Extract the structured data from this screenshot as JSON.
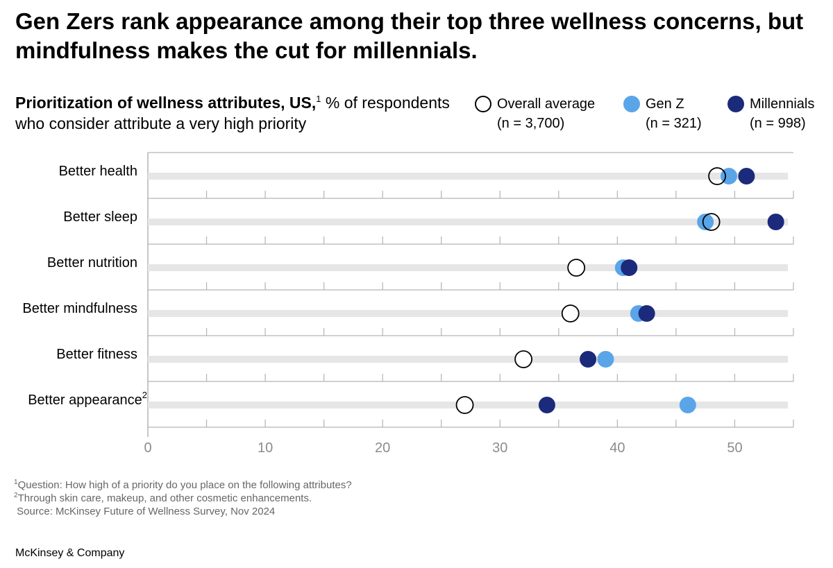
{
  "headline": "Gen Zers rank appearance among their top three wellness concerns, but mindfulness makes the cut for millennials.",
  "subtitle": {
    "bold": "Prioritization of wellness attributes, US,",
    "sup": "1",
    "rest": " % of respondents who consider attribute a very high priority"
  },
  "legend": [
    {
      "name": "Overall average",
      "n": "(n = 3,700)",
      "fill": "#ffffff",
      "stroke": "#000000"
    },
    {
      "name": "Gen Z",
      "n": "(n = 321)",
      "fill": "#5aa5e8",
      "stroke": "#5aa5e8"
    },
    {
      "name": "Millennials",
      "n": "(n = 998)",
      "fill": "#1b2a7b",
      "stroke": "#1b2a7b"
    }
  ],
  "chart_data": {
    "type": "dot",
    "categories": [
      "Better health",
      "Better sleep",
      "Better nutrition",
      "Better mindfulness",
      "Better fitness",
      "Better appearance"
    ],
    "category_superscripts": [
      "",
      "",
      "",
      "",
      "",
      "2"
    ],
    "xlim": [
      0,
      55
    ],
    "xticks": [
      0,
      10,
      20,
      30,
      40,
      50
    ],
    "series": [
      {
        "name": "Overall average",
        "values": [
          48.5,
          48,
          36.5,
          36,
          32,
          27
        ]
      },
      {
        "name": "Gen Z",
        "values": [
          49.5,
          47.5,
          40.5,
          41.8,
          39,
          46
        ]
      },
      {
        "name": "Millennials",
        "values": [
          51,
          53.5,
          41,
          42.5,
          37.5,
          34
        ]
      }
    ],
    "colors": {
      "track": "#e6e6e6",
      "grid": "#b3b3b3",
      "overall_fill": "#ffffff",
      "overall_stroke": "#000000",
      "genz": "#5aa5e8",
      "millennials": "#1b2a7b",
      "tick_text": "#8c8c8c"
    }
  },
  "footnotes": [
    {
      "sup": "1",
      "text": "Question: How high of a priority do you place on the following attributes?"
    },
    {
      "sup": "2",
      "text": "Through skin care, makeup, and other cosmetic enhancements."
    },
    {
      "sup": "",
      "text": "Source: McKinsey Future of Wellness Survey, Nov 2024"
    }
  ],
  "brand": "McKinsey & Company"
}
